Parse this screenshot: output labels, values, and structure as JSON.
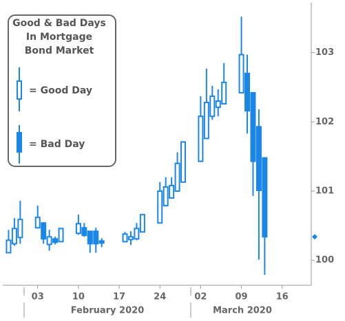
{
  "chart_data": {
    "type": "candlestick",
    "legend": {
      "title_lines": [
        "Good & Bad Days",
        "In Mortgage",
        "Bond Market"
      ],
      "up_label": "= Good Day",
      "down_label": "= Bad Day"
    },
    "up_color": "#1a86e8",
    "down_color": "#1a86e8",
    "x": [
      "2020-01-29",
      "2020-01-30",
      "2020-01-31",
      "2020-02-03",
      "2020-02-04",
      "2020-02-05",
      "2020-02-06",
      "2020-02-07",
      "2020-02-10",
      "2020-02-11",
      "2020-02-12",
      "2020-02-13",
      "2020-02-14",
      "2020-02-18",
      "2020-02-19",
      "2020-02-20",
      "2020-02-21",
      "2020-02-24",
      "2020-02-25",
      "2020-02-26",
      "2020-02-27",
      "2020-02-28",
      "2020-03-02",
      "2020-03-03",
      "2020-03-04",
      "2020-03-05",
      "2020-03-06",
      "2020-03-09",
      "2020-03-10",
      "2020-03-11",
      "2020-03-12",
      "2020-03-13"
    ],
    "open": [
      100.11,
      100.24,
      100.33,
      100.47,
      100.54,
      100.23,
      100.31,
      100.27,
      100.39,
      100.47,
      100.42,
      100.42,
      100.28,
      100.27,
      100.3,
      100.31,
      100.41,
      100.54,
      100.79,
      100.9,
      101.0,
      101.13,
      101.43,
      101.76,
      102.08,
      102.21,
      102.26,
      102.42,
      102.7,
      102.42,
      101.93,
      101.48
    ],
    "high": [
      100.44,
      100.61,
      100.86,
      100.79,
      100.55,
      100.44,
      100.34,
      100.46,
      100.66,
      100.54,
      100.42,
      100.47,
      100.32,
      100.41,
      100.42,
      100.54,
      100.66,
      101.13,
      101.2,
      101.2,
      101.56,
      101.71,
      102.37,
      102.77,
      102.52,
      102.47,
      102.85,
      103.52,
      102.97,
      102.42,
      102.18,
      101.48
    ],
    "low": [
      100.11,
      100.21,
      100.24,
      100.46,
      100.24,
      100.14,
      100.23,
      100.27,
      100.37,
      100.34,
      100.11,
      100.11,
      100.19,
      100.26,
      100.22,
      100.29,
      100.41,
      100.54,
      100.78,
      100.9,
      101.0,
      101.13,
      101.43,
      101.76,
      102.03,
      102.08,
      102.26,
      102.42,
      101.83,
      100.93,
      100.01,
      99.79
    ],
    "close": [
      100.29,
      100.46,
      100.59,
      100.62,
      100.31,
      100.34,
      100.26,
      100.46,
      100.53,
      100.36,
      100.24,
      100.24,
      100.25,
      100.38,
      100.34,
      100.46,
      100.66,
      101.0,
      101.06,
      101.08,
      101.4,
      101.71,
      102.08,
      102.28,
      102.37,
      102.3,
      102.57,
      102.97,
      102.16,
      101.43,
      101.01,
      100.34
    ],
    "last_price": 100.34,
    "xlim": [
      "2020-01-28",
      "2020-03-21"
    ],
    "xticks": [
      {
        "value": "2020-02-03",
        "label": "03"
      },
      {
        "value": "2020-02-10",
        "label": "10"
      },
      {
        "value": "2020-02-17",
        "label": "17"
      },
      {
        "value": "2020-02-24",
        "label": "24"
      },
      {
        "value": "2020-03-02",
        "label": "02"
      },
      {
        "value": "2020-03-09",
        "label": "09"
      },
      {
        "value": "2020-03-16",
        "label": "16"
      }
    ],
    "x_groups": [
      "February 2020",
      "March 2020"
    ],
    "ylim": [
      99.64,
      103.72
    ],
    "yticks": [
      100,
      101,
      102,
      103
    ]
  }
}
